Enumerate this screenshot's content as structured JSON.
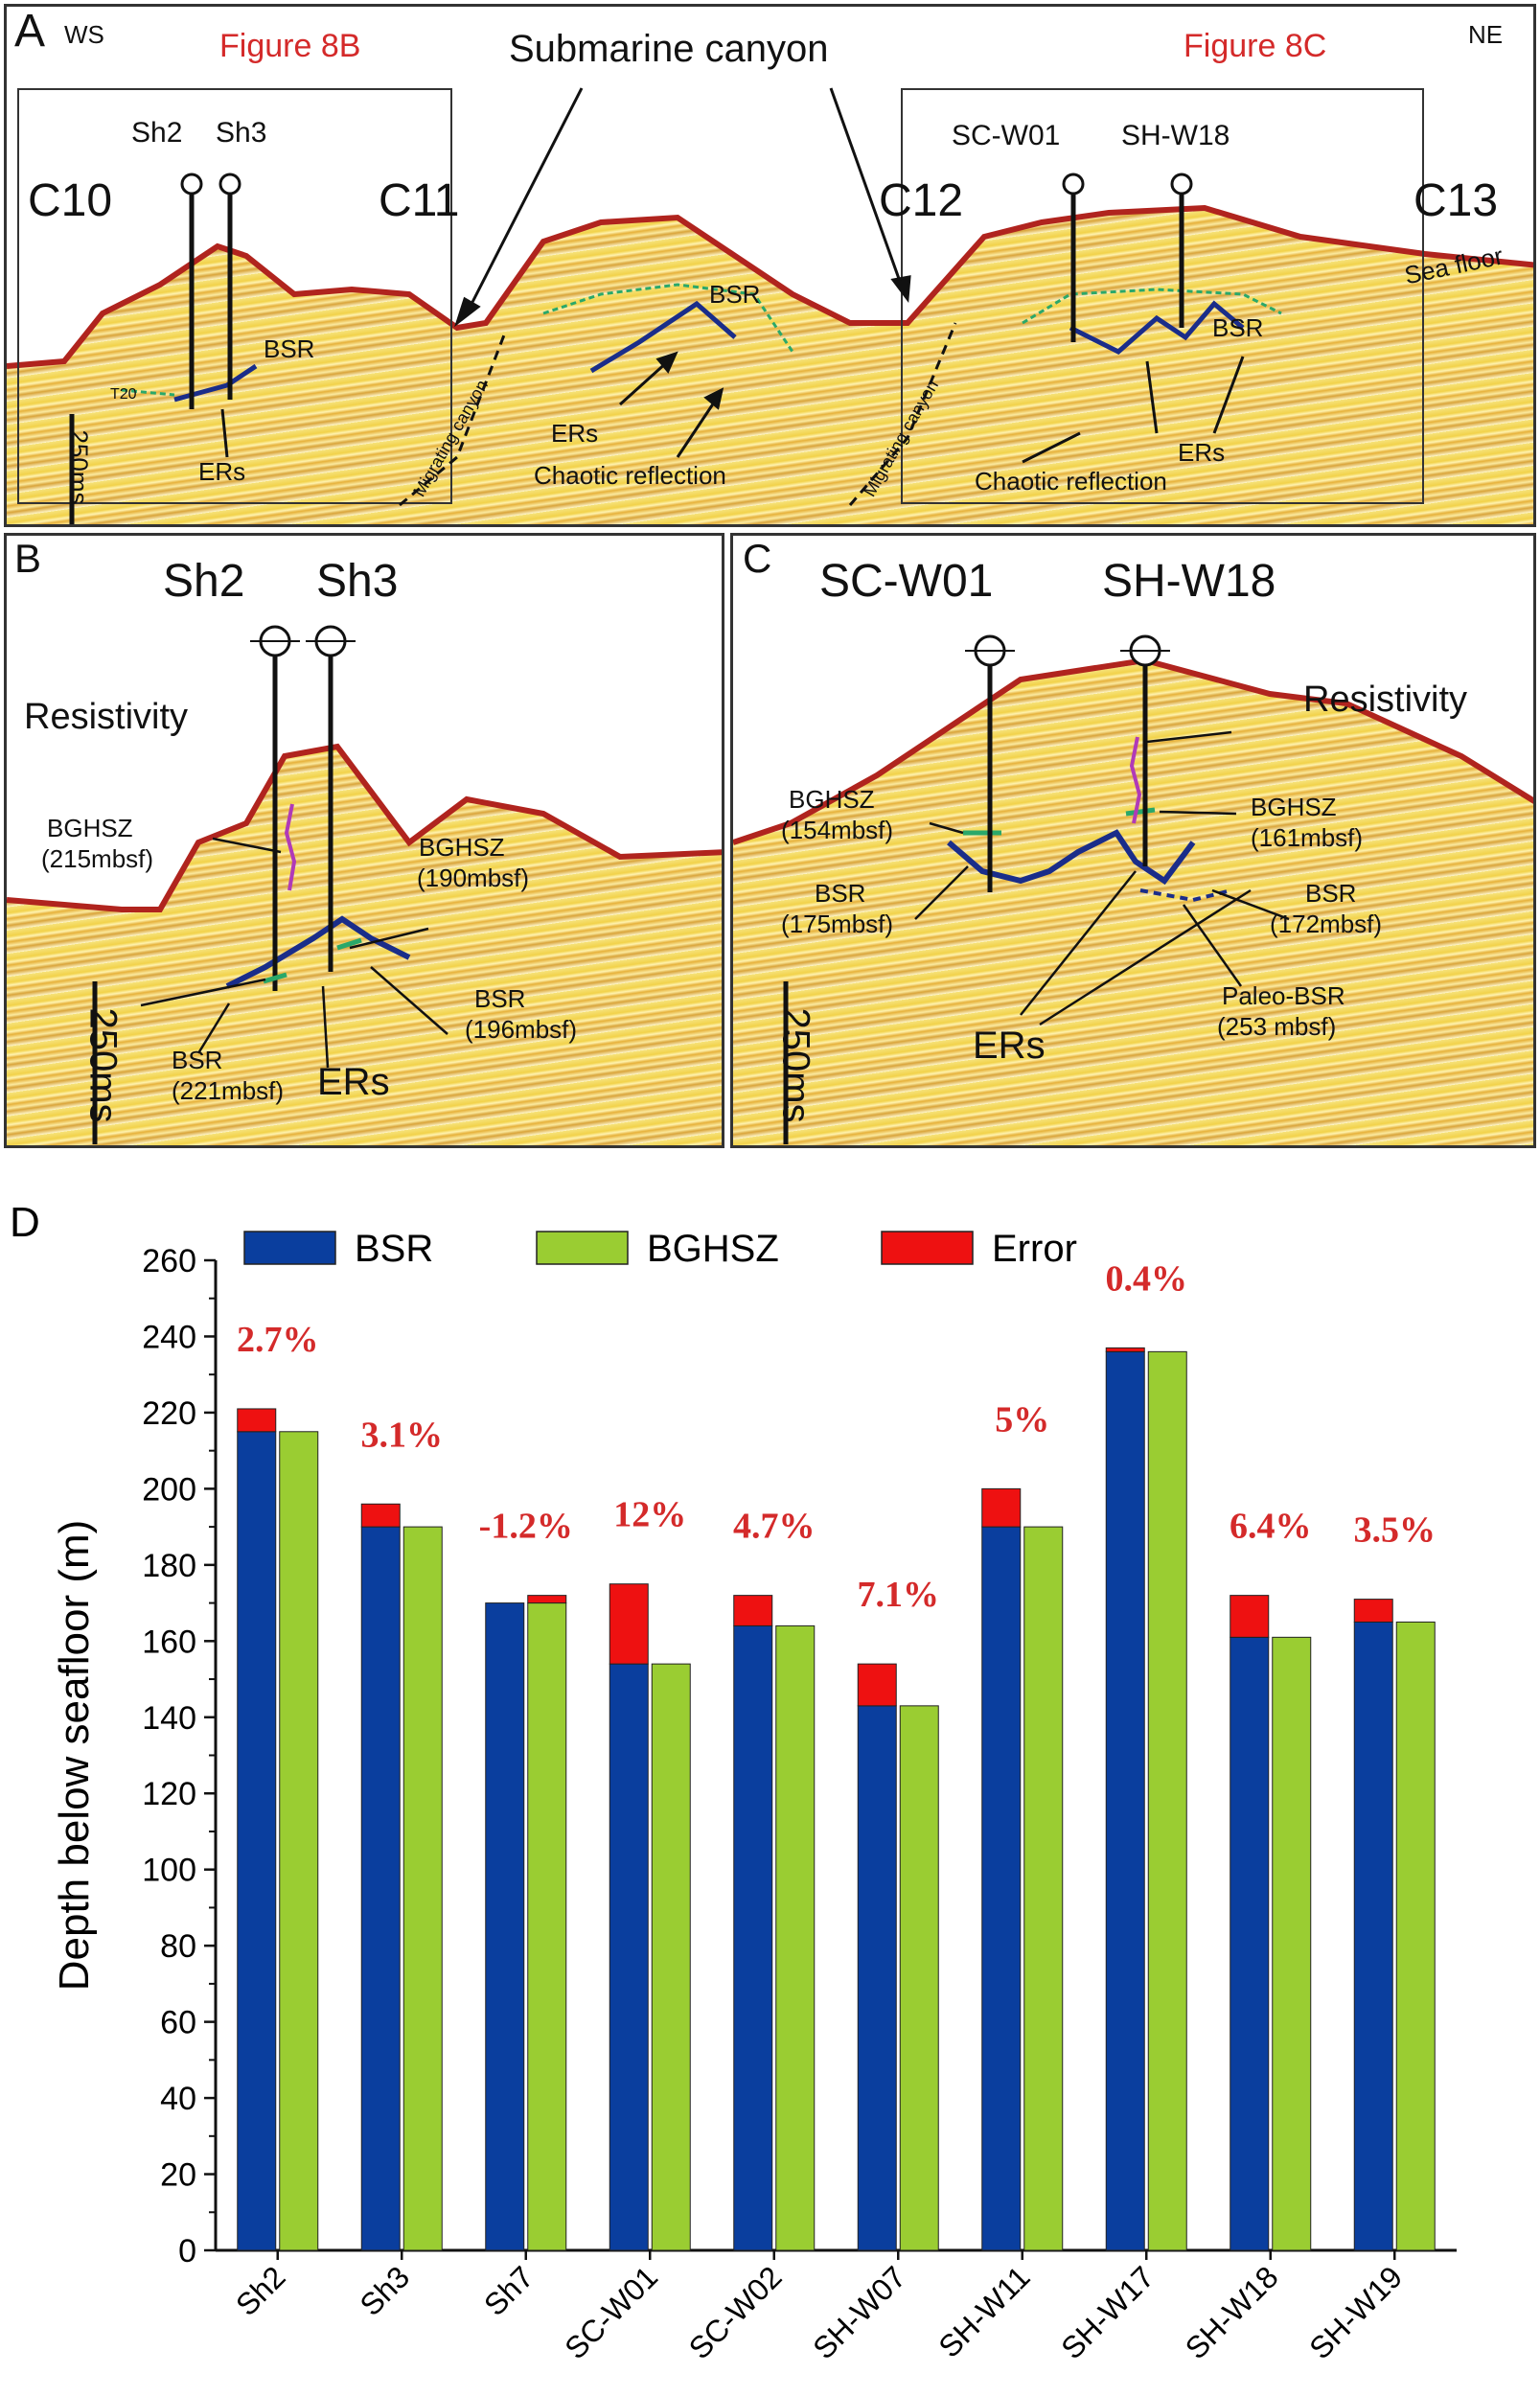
{
  "panelA": {
    "letter": "A",
    "ws": "WS",
    "ne": "NE",
    "fig8b": "Figure 8B",
    "fig8c": "Figure 8C",
    "submarine_canyon": "Submarine canyon",
    "c10": "C10",
    "c11": "C11",
    "c12": "C12",
    "c13": "C13",
    "sh2": "Sh2",
    "sh3": "Sh3",
    "scw01": "SC-W01",
    "shw18": "SH-W18",
    "sea_floor": "Sea floor",
    "bsr": "BSR",
    "ers": "ERs",
    "chaotic": "Chaotic reflection",
    "migrating": "Migrating canyon",
    "t20": "T20",
    "scale": "250ms"
  },
  "panelB": {
    "letter": "B",
    "sh2": "Sh2",
    "sh3": "Sh3",
    "resistivity": "Resistivity",
    "bghsz1": "BGHSZ",
    "bghsz1_depth": "(215mbsf)",
    "bghsz2": "BGHSZ",
    "bghsz2_depth": "(190mbsf)",
    "bsr1": "BSR",
    "bsr1_depth": "(196mbsf)",
    "bsr2": "BSR",
    "bsr2_depth": "(221mbsf)",
    "ers": "ERs",
    "scale": "250ms"
  },
  "panelC": {
    "letter": "C",
    "scw01": "SC-W01",
    "shw18": "SH-W18",
    "resistivity": "Resistivity",
    "bghsz1": "BGHSZ",
    "bghsz1_depth": "(154mbsf)",
    "bghsz2": "BGHSZ",
    "bghsz2_depth": "(161mbsf)",
    "bsr1": "BSR",
    "bsr1_depth": "(175mbsf)",
    "bsr2": "BSR",
    "bsr2_depth": "(172mbsf)",
    "paleo": "Paleo-BSR",
    "paleo_depth": "(253 mbsf)",
    "ers": "ERs",
    "scale": "250ms"
  },
  "chart_data": {
    "type": "bar",
    "panel_letter": "D",
    "categories": [
      "Sh2",
      "Sh3",
      "Sh7",
      "SC-W01",
      "SC-W02",
      "SH-W07",
      "SH-W11",
      "SH-W17",
      "SH-W18",
      "SH-W19"
    ],
    "series": [
      {
        "name": "BSR",
        "color": "#0a3e9e",
        "values": [
          221,
          196,
          170,
          175,
          172,
          154,
          200,
          237,
          172,
          171
        ]
      },
      {
        "name": "BGHSZ",
        "color": "#9acd32",
        "values": [
          215,
          190,
          172,
          154,
          164,
          143,
          190,
          236,
          161,
          165
        ]
      }
    ],
    "error_series": {
      "name": "Error",
      "color": "#ee1111"
    },
    "error_labels": [
      "2.7%",
      "3.1%",
      "-1.2%",
      "12%",
      "4.7%",
      "7.1%",
      "5%",
      "0.4%",
      "6.4%",
      "3.5%"
    ],
    "ylabel": "Depth below seafloor (m)",
    "ylim": [
      0,
      260
    ],
    "yticks": [
      0,
      20,
      40,
      60,
      80,
      100,
      120,
      140,
      160,
      180,
      200,
      220,
      240,
      260
    ]
  }
}
